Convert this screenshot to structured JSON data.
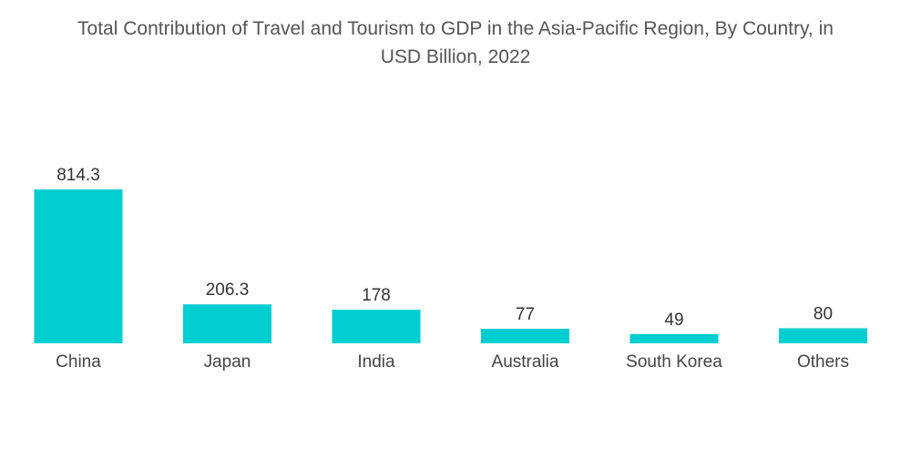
{
  "chart_data": {
    "type": "bar",
    "title_line1": "Total Contribution of Travel and Tourism to GDP in the Asia-Pacific Region, By Country, in",
    "title_line2": "USD Billion, 2022",
    "xlabel": "",
    "ylabel": "",
    "categories": [
      "China",
      "Japan",
      "India",
      "Australia",
      "South Korea",
      "Others"
    ],
    "values": [
      814.3,
      206.3,
      178,
      77,
      49,
      80
    ],
    "value_labels": [
      "814.3",
      "206.3",
      "178",
      "77",
      "49",
      "80"
    ],
    "ylim": [
      0,
      814.3
    ],
    "grid": false,
    "legend": "none",
    "bar_color": "#00CED1"
  }
}
